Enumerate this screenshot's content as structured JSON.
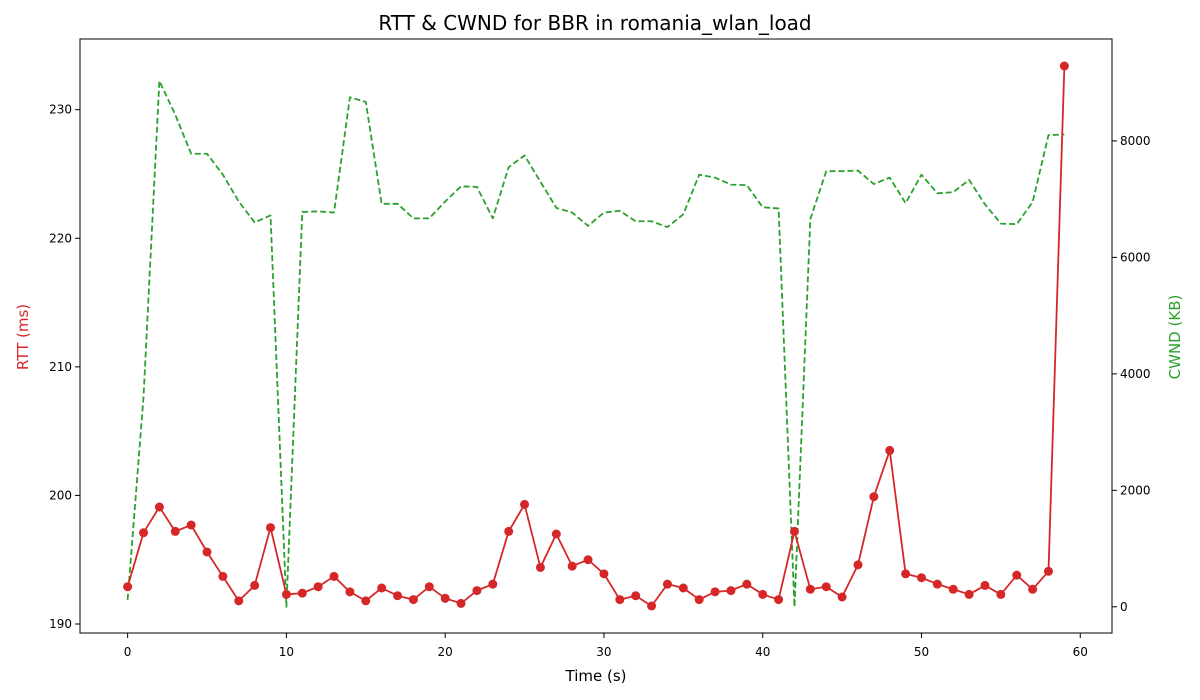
{
  "chart_data": {
    "type": "line",
    "title": "RTT & CWND for BBR in romania_wlan_load",
    "xlabel": "Time (s)",
    "xlim": [
      -3,
      62
    ],
    "x_ticks": [
      0,
      10,
      20,
      30,
      40,
      50,
      60
    ],
    "x": [
      0,
      1,
      2,
      3,
      4,
      5,
      6,
      7,
      8,
      9,
      10,
      11,
      12,
      13,
      14,
      15,
      16,
      17,
      18,
      19,
      20,
      21,
      22,
      23,
      24,
      25,
      26,
      27,
      28,
      29,
      30,
      31,
      32,
      33,
      34,
      35,
      36,
      37,
      38,
      39,
      40,
      41,
      42,
      43,
      44,
      45,
      46,
      47,
      48,
      49,
      50,
      51,
      52,
      53,
      54,
      55,
      56,
      57,
      58,
      59
    ],
    "series": [
      {
        "name": "RTT",
        "axis": "left",
        "ylabel": "RTT (ms)",
        "color": "#d62728",
        "style": "solid-markers",
        "ylim": [
          189.3,
          235.5
        ],
        "y_ticks": [
          190,
          200,
          210,
          220,
          230
        ],
        "values": [
          192.9,
          197.1,
          199.1,
          197.2,
          197.7,
          195.6,
          193.7,
          191.8,
          193.0,
          197.5,
          192.3,
          192.4,
          192.9,
          193.7,
          192.5,
          191.8,
          192.8,
          192.2,
          191.9,
          192.9,
          192.0,
          191.6,
          192.6,
          193.1,
          197.2,
          199.3,
          194.4,
          197.0,
          194.5,
          195.0,
          193.9,
          191.9,
          192.2,
          191.4,
          193.1,
          192.8,
          191.9,
          192.5,
          192.6,
          193.1,
          192.3,
          191.9,
          197.2,
          192.7,
          192.9,
          192.1,
          194.6,
          199.9,
          203.5,
          193.9,
          193.6,
          193.1,
          192.7,
          192.3,
          193.0,
          192.3,
          193.8,
          192.7,
          194.1,
          233.4
        ]
      },
      {
        "name": "CWND",
        "axis": "right",
        "ylabel": "CWND (KB)",
        "color": "#2ca02c",
        "style": "dashed",
        "ylim": [
          -450,
          9750
        ],
        "y_ticks": [
          0,
          2000,
          4000,
          6000,
          8000
        ],
        "values": [
          120,
          3600,
          9030,
          8450,
          7780,
          7780,
          7420,
          6960,
          6600,
          6720,
          0,
          6780,
          6790,
          6770,
          8750,
          8670,
          6920,
          6920,
          6670,
          6670,
          6960,
          7220,
          7210,
          6670,
          7550,
          7750,
          7300,
          6850,
          6770,
          6540,
          6770,
          6800,
          6620,
          6620,
          6520,
          6740,
          7420,
          7370,
          7250,
          7240,
          6860,
          6840,
          0,
          6660,
          7480,
          7480,
          7490,
          7260,
          7370,
          6930,
          7420,
          7100,
          7120,
          7330,
          6910,
          6580,
          6570,
          6950,
          8100,
          8110
        ]
      }
    ]
  }
}
